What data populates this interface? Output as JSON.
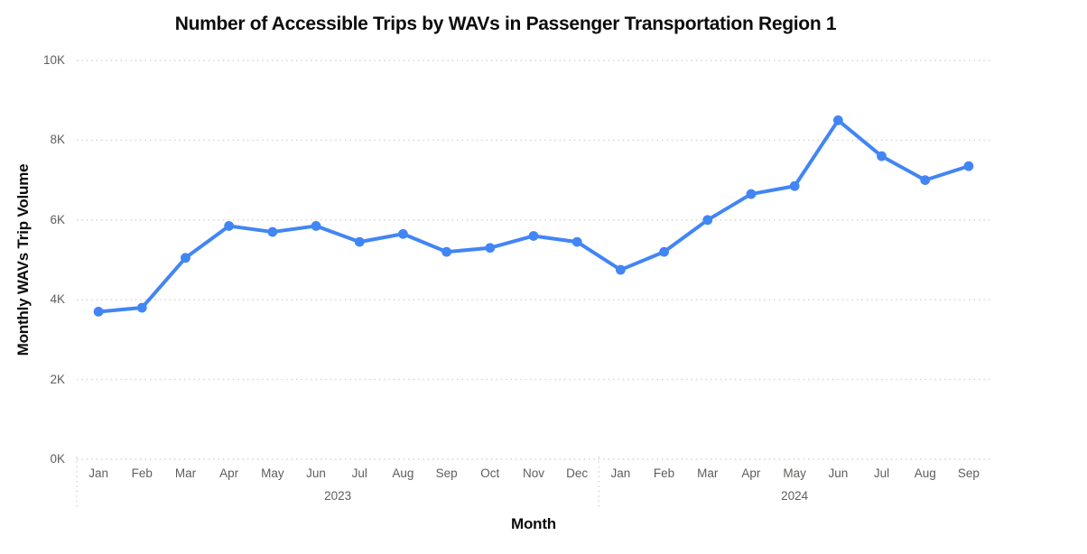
{
  "chart_data": {
    "type": "line",
    "title": "Number of Accessible Trips by WAVs in Passenger Transportation Region 1",
    "xlabel": "Month",
    "ylabel": "Monthly WAVs Trip Volume",
    "ylim": [
      0,
      10000
    ],
    "grid": "horizontal-dotted",
    "legend": "none",
    "grid_color": "#d2d0ce",
    "tick_label_color": "#605e5c",
    "yticks": [
      {
        "value": 0,
        "label": "0K"
      },
      {
        "value": 2000,
        "label": "2K"
      },
      {
        "value": 4000,
        "label": "4K"
      },
      {
        "value": 6000,
        "label": "6K"
      },
      {
        "value": 8000,
        "label": "8K"
      },
      {
        "value": 10000,
        "label": "10K"
      }
    ],
    "x_groups": [
      {
        "year": "2023",
        "months": [
          "Jan",
          "Feb",
          "Mar",
          "Apr",
          "May",
          "Jun",
          "Jul",
          "Aug",
          "Sep",
          "Oct",
          "Nov",
          "Dec"
        ]
      },
      {
        "year": "2024",
        "months": [
          "Jan",
          "Feb",
          "Mar",
          "Apr",
          "May",
          "Jun",
          "Jul",
          "Aug",
          "Sep"
        ]
      }
    ],
    "series": [
      {
        "name": "Monthly WAVs Trip Volume",
        "color": "#4285f4",
        "marker": "circle",
        "values": [
          3700,
          3800,
          5050,
          5850,
          5700,
          5850,
          5450,
          5650,
          5200,
          5300,
          5600,
          5450,
          4750,
          5200,
          6000,
          6650,
          6850,
          8500,
          7600,
          7000,
          7350
        ]
      }
    ]
  }
}
